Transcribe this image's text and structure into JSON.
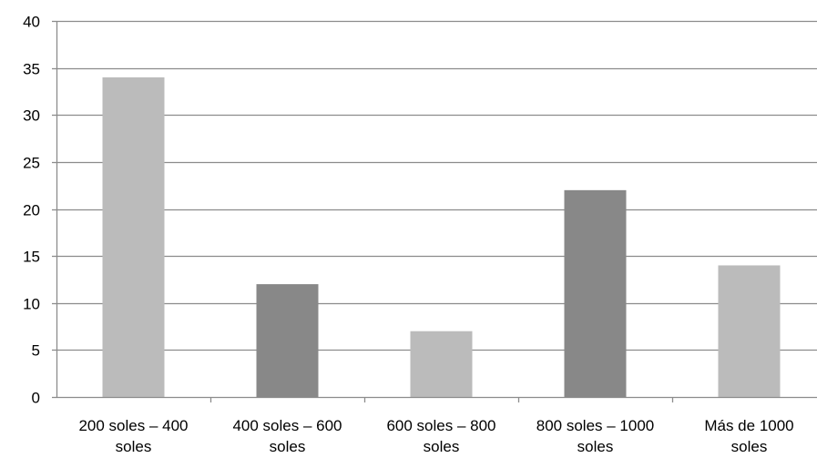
{
  "chart_data": {
    "type": "bar",
    "title": "",
    "xlabel": "",
    "ylabel": "",
    "ylim": [
      0,
      40
    ],
    "ytick_step": 5,
    "grid": "horizontal",
    "legend": "none",
    "categories": [
      [
        "200 soles – 400",
        "soles"
      ],
      [
        "400 soles – 600",
        "soles"
      ],
      [
        "600 soles – 800",
        "soles"
      ],
      [
        "800 soles – 1000",
        "soles"
      ],
      [
        "Más de 1000",
        "soles"
      ]
    ],
    "values": [
      34,
      12,
      7,
      22,
      14
    ],
    "bar_colors": [
      "#bbbbbb",
      "#888888",
      "#bbbbbb",
      "#888888",
      "#bbbbbb"
    ],
    "yticks": [
      "0",
      "5",
      "10",
      "15",
      "20",
      "25",
      "30",
      "35",
      "40"
    ]
  }
}
